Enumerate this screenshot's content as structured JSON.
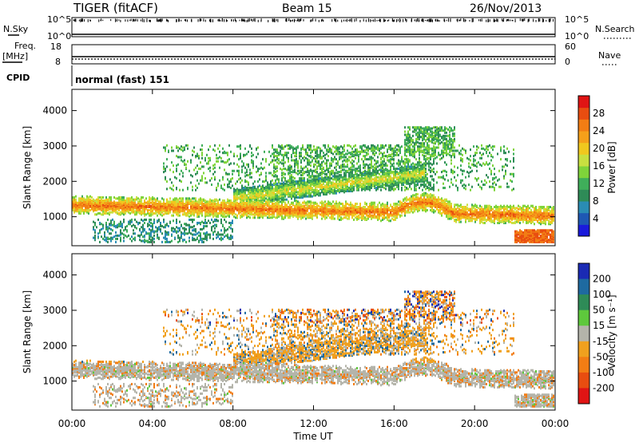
{
  "header": {
    "title": "TIGER (fitACF)",
    "beam": "Beam 15",
    "date": "26/Nov/2013"
  },
  "panels": {
    "nsky": {
      "left_label": "N.Sky",
      "right_label": "N.Search",
      "left_ticks": [
        "10^5",
        "10^0"
      ],
      "right_ticks": [
        "10^5",
        "10^0"
      ]
    },
    "freq": {
      "left_label_1": "Freq.",
      "left_label_2": "[MHz]",
      "right_label": "Nave",
      "left_ticks": [
        "18",
        "8"
      ],
      "right_ticks": [
        "60",
        "0"
      ]
    },
    "cpid": {
      "label": "CPID",
      "value": "normal (fast) 151"
    }
  },
  "chart_data": [
    {
      "type": "heatmap",
      "name": "power",
      "ylabel": "Slant Range [km]",
      "xlabel": "",
      "x_ticks": [
        "00:00",
        "04:00",
        "08:00",
        "12:00",
        "16:00",
        "20:00",
        "00:00"
      ],
      "x_hours": [
        0,
        4,
        8,
        12,
        16,
        20,
        24
      ],
      "xlim_hours": [
        0,
        24
      ],
      "y_ticks": [
        1000,
        2000,
        3000,
        4000
      ],
      "ylim": [
        180,
        4600
      ],
      "colorbar": {
        "label": "Power [dB]",
        "ticks": [
          4,
          8,
          12,
          16,
          20,
          24,
          28
        ],
        "range": [
          0,
          32
        ],
        "colors": [
          "#1a1adc",
          "#1e58b4",
          "#2a8cb4",
          "#2e8b57",
          "#3fae5a",
          "#7fd43a",
          "#c8e040",
          "#f0c81e",
          "#f5a01a",
          "#f27d14",
          "#e84d10",
          "#e01414"
        ]
      },
      "features": [
        {
          "desc": "main ground-scatter band",
          "hours": [
            0,
            24
          ],
          "range_km": [
            1300,
            950
          ],
          "level": 20
        },
        {
          "desc": "upper diagonal band",
          "hours": [
            8,
            17.5
          ],
          "range_km": [
            1500,
            2200
          ],
          "level": 18
        },
        {
          "desc": "far range patch",
          "hours": [
            16.5,
            19
          ],
          "range_km": [
            2800,
            3500
          ],
          "level": 12
        }
      ]
    },
    {
      "type": "heatmap",
      "name": "velocity",
      "ylabel": "Slant Range [km]",
      "xlabel": "Time UT",
      "x_ticks": [
        "00:00",
        "04:00",
        "08:00",
        "12:00",
        "16:00",
        "20:00",
        "00:00"
      ],
      "x_hours": [
        0,
        4,
        8,
        12,
        16,
        20,
        24
      ],
      "xlim_hours": [
        0,
        24
      ],
      "y_ticks": [
        1000,
        2000,
        3000,
        4000
      ],
      "ylim": [
        180,
        4600
      ],
      "colorbar": {
        "label": "Velocity [m s⁻¹]",
        "ticks": [
          "200",
          "100",
          "50",
          "15",
          "-15",
          "-50",
          "-100",
          "-200"
        ],
        "colors": [
          "#1a2ab4",
          "#1e6aa0",
          "#2e8b57",
          "#5ec83c",
          "#b4b4aa",
          "#f0a01e",
          "#f27d14",
          "#e84d10",
          "#e01414"
        ]
      }
    }
  ]
}
